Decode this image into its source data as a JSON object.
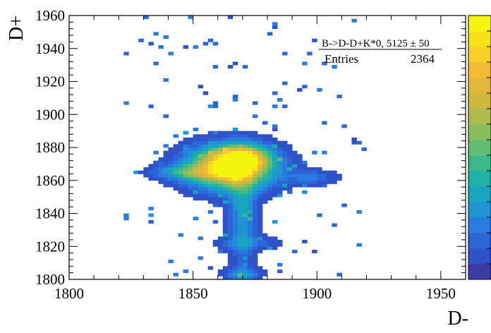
{
  "chart_data": {
    "type": "heatmap",
    "title": "",
    "xlabel": "D-",
    "ylabel": "D+",
    "xlim": [
      1800,
      1960
    ],
    "ylim": [
      1800,
      1960
    ],
    "x_ticks": [
      "1800",
      "1850",
      "1900",
      "1950"
    ],
    "y_ticks": [
      "1800",
      "1820",
      "1840",
      "1860",
      "1880",
      "1900",
      "1920",
      "1940",
      "1960"
    ],
    "grid": false,
    "stats_box": {
      "title": "B->D-D+K*0, 5125   ± 50",
      "entries_label": "Entries",
      "entries_value": "2364"
    },
    "palette": [
      "#3b3ba4",
      "#2f52c9",
      "#2a66d8",
      "#2a7be0",
      "#1f94d3",
      "#17a5c0",
      "#1fb0a8",
      "#3cb88d",
      "#62bd73",
      "#8abd5e",
      "#aebb4e",
      "#cdb83f",
      "#e2b73a",
      "#f2bb33",
      "#f8cf27",
      "#f7e21a",
      "#f5f50f"
    ],
    "blobs": [
      {
        "cx": 1865,
        "cy": 1868,
        "sx": 12,
        "sy": 9,
        "amp": 1.0
      },
      {
        "cx": 1870,
        "cy": 1874,
        "sx": 7,
        "sy": 5,
        "amp": 0.55
      },
      {
        "cx": 1866,
        "cy": 1867,
        "sx": 4,
        "sy": 3,
        "amp": 0.55
      },
      {
        "cx": 1870,
        "cy": 1838,
        "sx": 4,
        "sy": 20,
        "amp": 0.32
      },
      {
        "cx": 1846,
        "cy": 1865,
        "sx": 9,
        "sy": 3,
        "amp": 0.28
      },
      {
        "cx": 1898,
        "cy": 1862,
        "sx": 7,
        "sy": 3,
        "amp": 0.2
      },
      {
        "cx": 1870,
        "cy": 1803,
        "sx": 5,
        "sy": 3,
        "amp": 0.28
      },
      {
        "cx": 1873,
        "cy": 1822,
        "sx": 10,
        "sy": 3,
        "amp": 0.14
      }
    ],
    "noise_level": 0.16,
    "threshold": 0.05
  }
}
